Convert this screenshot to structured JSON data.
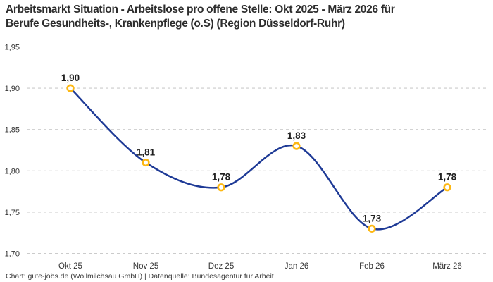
{
  "title": {
    "line1": "Arbeitsmarkt Situation - Arbeitslose pro offene Stelle: Okt 2025 - März 2026 für",
    "line2": "Berufe Gesundheits-, Krankenpflege (o.S) (Region Düsseldorf-Ruhr)"
  },
  "footer": {
    "text": "Chart: gute-jobs.de (Wollmilchsau GmbH) | Datenquelle: Bundesagentur für Arbeit"
  },
  "chart_data": {
    "type": "line",
    "title": "Arbeitsmarkt Situation - Arbeitslose pro offene Stelle: Okt 2025 - März 2026 für Berufe Gesundheits-, Krankenpflege (o.S) (Region Düsseldorf-Ruhr)",
    "categories": [
      "Okt 25",
      "Nov 25",
      "Dez 25",
      "Jan 26",
      "Feb 26",
      "März 26"
    ],
    "values": [
      1.9,
      1.81,
      1.78,
      1.83,
      1.73,
      1.78
    ],
    "value_labels": [
      "1,90",
      "1,81",
      "1,78",
      "1,83",
      "1,73",
      "1,78"
    ],
    "y_ticks": {
      "values": [
        1.95,
        1.9,
        1.85,
        1.8,
        1.75,
        1.7
      ],
      "labels": [
        "1,95",
        "1,90",
        "1,85",
        "1,80",
        "1,75",
        "1,70"
      ]
    },
    "ylim": [
      1.7,
      1.95
    ],
    "xlabel": "",
    "ylabel": "",
    "grid": "horizontal-dashed",
    "legend": "none",
    "line_style": "smooth-spline",
    "marker_style": "open-circle",
    "colors": {
      "line": "#1E3A96",
      "marker_ring": "#FDB813",
      "marker_fill": "#FFFFFF",
      "gridline": "#CBCBCB",
      "title_text": "#2D2D2D",
      "axis_text": "#333333",
      "value_label_text": "#1F1F1F",
      "background": "#FFFFFF"
    }
  }
}
